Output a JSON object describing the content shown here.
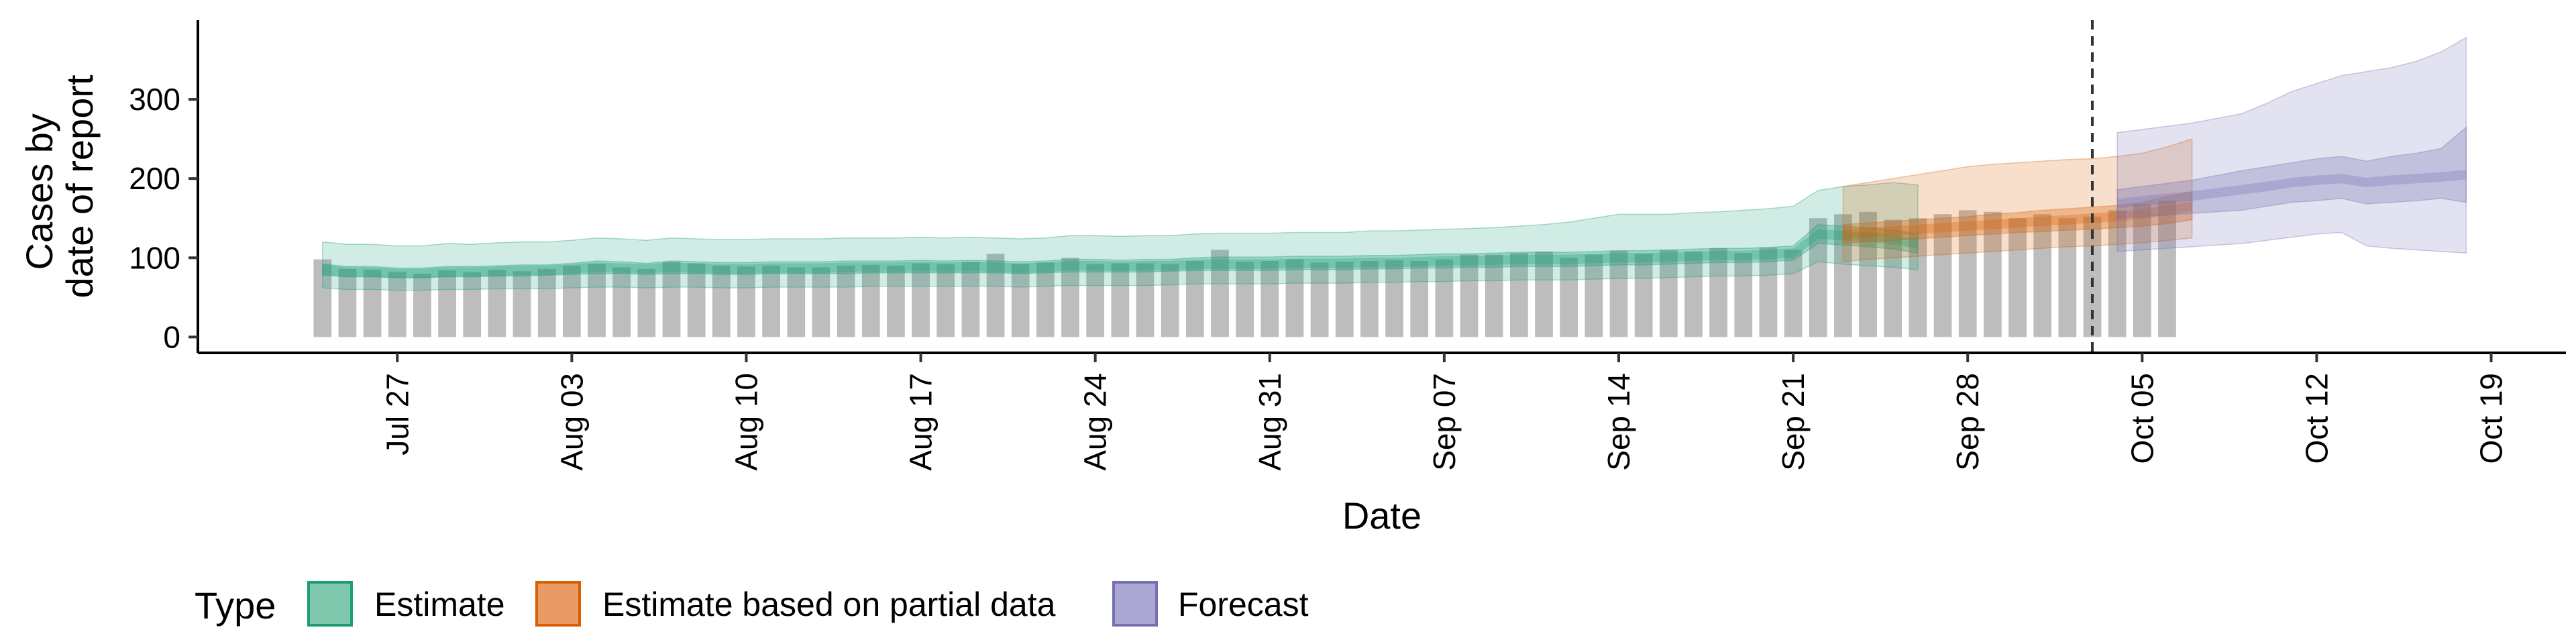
{
  "chart_data": {
    "type": "bar",
    "title": "",
    "xlabel": "Date",
    "ylabel_lines": [
      "Cases by",
      "date of report"
    ],
    "x_range": [
      "2020-07-19",
      "2020-10-22"
    ],
    "y_range": [
      -20,
      400
    ],
    "y_ticks": [
      0,
      100,
      200,
      300
    ],
    "x_ticks": [
      {
        "date": "2020-07-27",
        "label": "Jul 27"
      },
      {
        "date": "2020-08-03",
        "label": "Aug 03"
      },
      {
        "date": "2020-08-10",
        "label": "Aug 10"
      },
      {
        "date": "2020-08-17",
        "label": "Aug 17"
      },
      {
        "date": "2020-08-24",
        "label": "Aug 24"
      },
      {
        "date": "2020-08-31",
        "label": "Aug 31"
      },
      {
        "date": "2020-09-07",
        "label": "Sep 07"
      },
      {
        "date": "2020-09-14",
        "label": "Sep 14"
      },
      {
        "date": "2020-09-21",
        "label": "Sep 21"
      },
      {
        "date": "2020-09-28",
        "label": "Sep 28"
      },
      {
        "date": "2020-10-05",
        "label": "Oct 05"
      },
      {
        "date": "2020-10-12",
        "label": "Oct 12"
      },
      {
        "date": "2020-10-19",
        "label": "Oct 19"
      }
    ],
    "bar_start_date": "2020-07-24",
    "bar_color": "#bdbdbd",
    "reported_cases": [
      98,
      86,
      85,
      82,
      80,
      84,
      82,
      85,
      83,
      86,
      90,
      92,
      88,
      86,
      95,
      93,
      90,
      89,
      90,
      88,
      88,
      90,
      91,
      90,
      93,
      92,
      95,
      105,
      92,
      94,
      100,
      92,
      93,
      93,
      92,
      96,
      110,
      95,
      96,
      98,
      94,
      95,
      96,
      97,
      96,
      98,
      104,
      104,
      106,
      108,
      100,
      104,
      109,
      105,
      110,
      108,
      112,
      106,
      113,
      110,
      150,
      155,
      158,
      148,
      150,
      155,
      160,
      158,
      150,
      155,
      150,
      152,
      160,
      168,
      172
    ],
    "forecast_line_date": "2020-10-03",
    "series": [
      {
        "name": "Estimate",
        "color": "#1b9e77",
        "fill": "#7fc7ad",
        "start": "2020-07-24",
        "median": [
          85,
          82,
          82,
          80,
          80,
          82,
          82,
          83,
          84,
          84,
          86,
          88,
          87,
          86,
          88,
          87,
          86,
          86,
          87,
          87,
          87,
          88,
          88,
          88,
          89,
          88,
          89,
          88,
          87,
          88,
          90,
          90,
          89,
          90,
          90,
          92,
          92,
          92,
          92,
          93,
          93,
          93,
          94,
          94,
          95,
          96,
          96,
          97,
          98,
          98,
          98,
          99,
          100,
          100,
          101,
          102,
          103,
          103,
          104,
          106,
          130,
          128,
          126,
          123,
          118
        ],
        "lower50": [
          78,
          76,
          76,
          75,
          75,
          76,
          76,
          77,
          77,
          78,
          79,
          80,
          80,
          79,
          80,
          80,
          79,
          79,
          80,
          80,
          80,
          80,
          81,
          81,
          81,
          81,
          81,
          81,
          80,
          81,
          82,
          82,
          82,
          82,
          83,
          84,
          84,
          84,
          84,
          85,
          85,
          85,
          86,
          86,
          87,
          87,
          88,
          88,
          89,
          89,
          89,
          90,
          91,
          91,
          92,
          93,
          94,
          94,
          95,
          97,
          118,
          116,
          114,
          111,
          106
        ],
        "upper50": [
          92,
          89,
          89,
          87,
          87,
          89,
          89,
          90,
          91,
          91,
          93,
          96,
          95,
          93,
          96,
          95,
          94,
          94,
          95,
          95,
          95,
          96,
          96,
          96,
          97,
          96,
          97,
          96,
          95,
          96,
          98,
          98,
          97,
          98,
          98,
          100,
          101,
          101,
          101,
          102,
          102,
          102,
          103,
          103,
          104,
          105,
          105,
          106,
          107,
          107,
          107,
          108,
          109,
          109,
          110,
          111,
          112,
          112,
          113,
          115,
          142,
          140,
          138,
          135,
          130
        ],
        "lower90": [
          62,
          60,
          60,
          59,
          59,
          60,
          60,
          61,
          61,
          61,
          62,
          63,
          63,
          62,
          63,
          63,
          62,
          62,
          63,
          63,
          63,
          63,
          64,
          64,
          64,
          64,
          64,
          64,
          63,
          64,
          65,
          65,
          65,
          65,
          66,
          67,
          67,
          67,
          67,
          68,
          68,
          68,
          69,
          69,
          70,
          70,
          71,
          71,
          72,
          72,
          72,
          73,
          74,
          74,
          75,
          76,
          77,
          77,
          78,
          80,
          95,
          92,
          90,
          88,
          85
        ],
        "upper90": [
          120,
          117,
          117,
          115,
          115,
          118,
          117,
          119,
          120,
          120,
          122,
          125,
          124,
          122,
          125,
          124,
          123,
          123,
          124,
          124,
          124,
          125,
          125,
          125,
          126,
          125,
          126,
          125,
          124,
          125,
          128,
          128,
          127,
          128,
          128,
          130,
          131,
          131,
          131,
          132,
          132,
          132,
          134,
          134,
          135,
          136,
          137,
          138,
          140,
          142,
          145,
          150,
          155,
          155,
          155,
          157,
          158,
          160,
          162,
          165,
          185,
          190,
          192,
          195,
          192
        ]
      },
      {
        "name": "Estimate based on partial data",
        "color": "#d95f02",
        "fill": "#e89b64",
        "start": "2020-09-23",
        "median": [
          130,
          132,
          134,
          136,
          138,
          140,
          142,
          144,
          146,
          148,
          150,
          152,
          155,
          160,
          165
        ],
        "lower50": [
          118,
          120,
          122,
          124,
          126,
          128,
          130,
          132,
          133,
          135,
          136,
          138,
          140,
          143,
          148
        ],
        "upper50": [
          142,
          144,
          146,
          148,
          150,
          152,
          155,
          157,
          160,
          162,
          164,
          166,
          170,
          177,
          183
        ],
        "lower90": [
          95,
          98,
          100,
          102,
          104,
          106,
          108,
          110,
          112,
          114,
          115,
          117,
          119,
          122,
          125
        ],
        "upper90": [
          190,
          195,
          200,
          205,
          210,
          215,
          218,
          220,
          222,
          224,
          225,
          228,
          232,
          240,
          250
        ]
      },
      {
        "name": "Forecast",
        "color": "#7570b3",
        "fill": "#aaa7d2",
        "start": "2020-10-04",
        "median": [
          168,
          172,
          175,
          178,
          182,
          186,
          190,
          195,
          198,
          200,
          195,
          198,
          200,
          202,
          205
        ],
        "lower50": [
          150,
          152,
          154,
          156,
          158,
          160,
          165,
          170,
          172,
          175,
          168,
          170,
          172,
          175,
          170
        ],
        "upper50": [
          186,
          190,
          194,
          198,
          204,
          210,
          215,
          220,
          225,
          228,
          222,
          228,
          232,
          238,
          265
        ],
        "lower90": [
          108,
          110,
          112,
          114,
          116,
          118,
          122,
          126,
          130,
          132,
          115,
          112,
          110,
          108,
          106
        ],
        "upper90": [
          258,
          262,
          266,
          270,
          276,
          282,
          295,
          310,
          320,
          330,
          335,
          340,
          348,
          360,
          378
        ]
      }
    ],
    "legend": {
      "title": "Type",
      "placement": "bottom-left",
      "items": [
        "Estimate",
        "Estimate based on partial data",
        "Forecast"
      ]
    }
  }
}
